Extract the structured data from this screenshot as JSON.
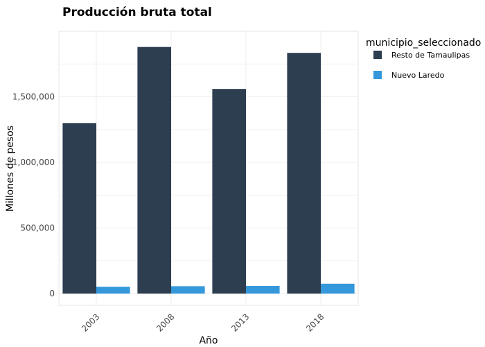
{
  "chart_data": {
    "type": "bar",
    "title": "Producción bruta total",
    "xlabel": "Año",
    "ylabel": "Millones de pesos",
    "categories": [
      "2003",
      "2008",
      "2013",
      "2018"
    ],
    "series": [
      {
        "name": "Resto de Tamaulipas",
        "color": "#2c3e50",
        "values": [
          1300000,
          1880000,
          1560000,
          1835000
        ]
      },
      {
        "name": "Nuevo Laredo",
        "color": "#3498db",
        "values": [
          52000,
          56000,
          58000,
          75000
        ]
      }
    ],
    "yticks": [
      0,
      500000,
      1000000,
      1500000
    ],
    "ytick_labels": [
      "0",
      "500,000",
      "1,000,000",
      "1,500,000"
    ],
    "ylim": [
      -90000,
      2000000
    ],
    "legend": {
      "title": "municipio_seleccionado",
      "placement": "right"
    },
    "grid": true
  }
}
